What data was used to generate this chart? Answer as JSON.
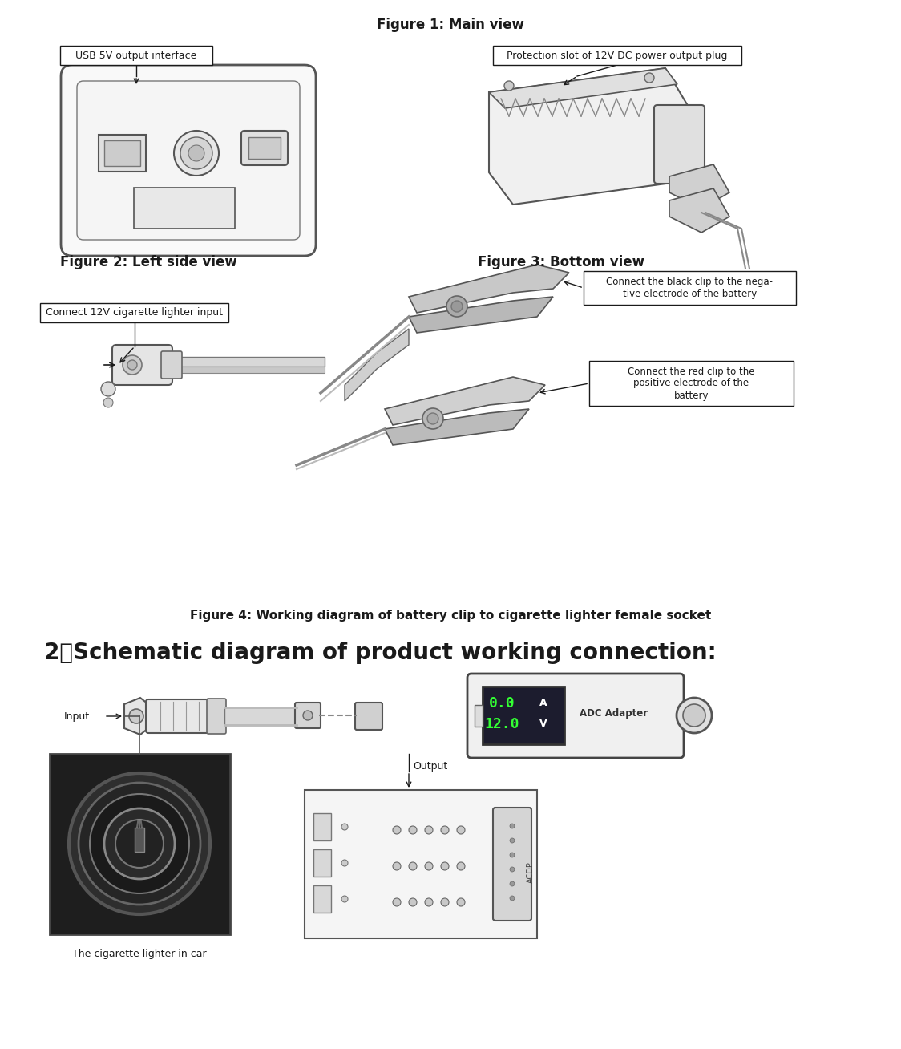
{
  "background_color": "#ffffff",
  "title_fig1": "Figure 1: Main view",
  "title_fig2": "Figure 2: Left side view",
  "title_fig3": "Figure 3: Bottom view",
  "title_fig4": "Figure 4: Working diagram of battery clip to cigarette lighter female socket",
  "title_section2": "2、Schematic diagram of product working connection:",
  "label_usb": "USB 5V output interface",
  "label_protection": "Protection slot of 12V DC power output plug",
  "label_cigarette": "Connect 12V cigarette lighter input",
  "label_black_clip": "Connect the black clip to the nega-\ntive electrode of the battery",
  "label_red_clip": "Connect the red clip to the\npositive electrode of the\nbattery",
  "label_input": "Input",
  "label_output": "Output",
  "label_lighter_car": "The cigarette lighter in car",
  "text_color": "#1a1a1a",
  "line_color": "#1a1a1a",
  "fig_width": 11.24,
  "fig_height": 13.08
}
